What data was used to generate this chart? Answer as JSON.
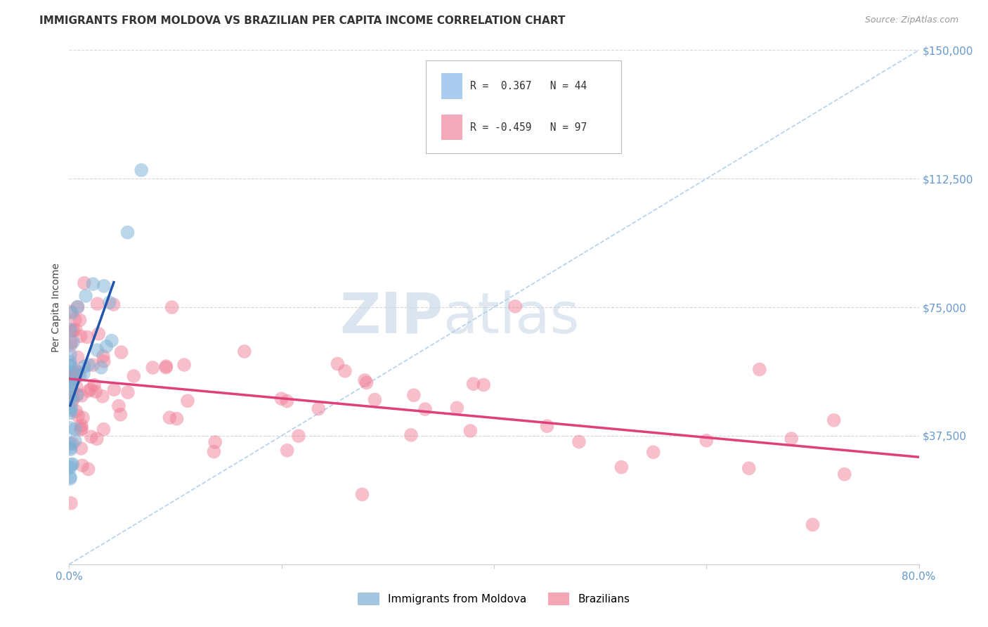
{
  "title": "IMMIGRANTS FROM MOLDOVA VS BRAZILIAN PER CAPITA INCOME CORRELATION CHART",
  "source": "Source: ZipAtlas.com",
  "ylabel": "Per Capita Income",
  "xlim": [
    0.0,
    0.8
  ],
  "ylim": [
    0,
    150000
  ],
  "yticks": [
    0,
    37500,
    75000,
    112500,
    150000
  ],
  "ytick_labels": [
    "",
    "$37,500",
    "$75,000",
    "$112,500",
    "$150,000"
  ],
  "xticks": [
    0.0,
    0.2,
    0.4,
    0.6,
    0.8
  ],
  "xtick_labels": [
    "0.0%",
    "",
    "",
    "",
    "80.0%"
  ],
  "r_moldova": 0.367,
  "n_moldova": 44,
  "r_brazilians": -0.459,
  "n_brazilians": 97,
  "color_moldova": "#7BAFD4",
  "color_brazilians": "#F08098",
  "color_line_moldova": "#2255AA",
  "color_line_brazilians": "#E0407A",
  "color_dashed": "#AACCEE",
  "watermark_zip": "ZIP",
  "watermark_atlas": "atlas",
  "background_color": "#FFFFFF",
  "grid_color": "#CCCCCC",
  "title_color": "#333333",
  "axis_color": "#6699CC",
  "legend_box_color_moldova": "#AACCEE",
  "legend_box_color_brazilians": "#F4AABB"
}
